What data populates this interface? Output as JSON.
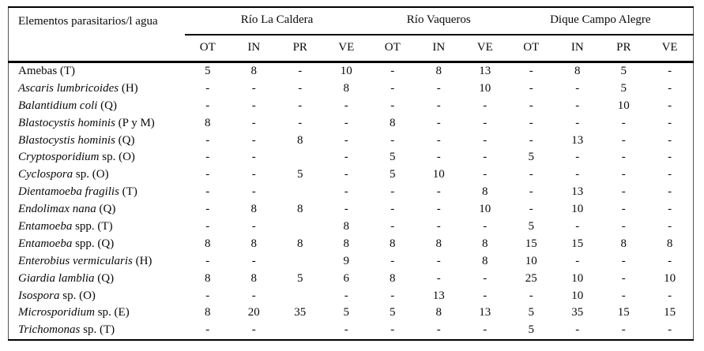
{
  "table": {
    "corner_header": "Elementos parasitarios/l agua",
    "groups": [
      {
        "label": "Río La Caldera",
        "span": "4"
      },
      {
        "label": "Río Vaqueros",
        "span": "3"
      },
      {
        "label": "Dique Campo Alegre",
        "span": "4"
      }
    ],
    "subheaders": [
      "OT",
      "IN",
      "PR",
      "VE",
      "OT",
      "IN",
      "VE",
      "OT",
      "IN",
      "PR",
      "VE"
    ],
    "rows": [
      {
        "italic": "",
        "plain": "Amebas (T)",
        "cells": [
          "5",
          "8",
          "-",
          "10",
          "-",
          "8",
          "13",
          "-",
          "8",
          "5",
          "-"
        ]
      },
      {
        "italic": "Ascaris lumbricoides",
        "plain": " (H)",
        "cells": [
          "-",
          "-",
          "-",
          "8",
          "-",
          "-",
          "10",
          "-",
          "-",
          "5",
          "-"
        ]
      },
      {
        "italic": "Balantidium coli",
        "plain": " (Q)",
        "cells": [
          "-",
          "-",
          "-",
          "-",
          "-",
          "-",
          "-",
          "-",
          "-",
          "10",
          "-"
        ]
      },
      {
        "italic": "Blastocystis hominis",
        "plain": " (P y M)",
        "cells": [
          "8",
          "-",
          "-",
          "-",
          "8",
          "-",
          "-",
          "-",
          "-",
          "-",
          "-"
        ]
      },
      {
        "italic": "Blastocystis hominis",
        "plain": " (Q)",
        "cells": [
          "-",
          "-",
          "8",
          "-",
          "-",
          "-",
          "-",
          "-",
          "13",
          "-",
          "-"
        ]
      },
      {
        "italic": "Cryptosporidium",
        "plain": " sp. (O)",
        "cells": [
          "-",
          "-",
          "",
          "-",
          "5",
          "-",
          "-",
          "5",
          "-",
          "-",
          "-"
        ]
      },
      {
        "italic": "Cyclospora",
        "plain": " sp. (O)",
        "cells": [
          "-",
          "-",
          "5",
          "-",
          "5",
          "10",
          "-",
          "-",
          "-",
          "-",
          "-"
        ]
      },
      {
        "italic": "Dientamoeba fragilis",
        "plain": " (T)",
        "cells": [
          "-",
          "-",
          "",
          "-",
          "-",
          "-",
          "8",
          "-",
          "13",
          "-",
          "-"
        ]
      },
      {
        "italic": "Endolimax nana",
        "plain": " (Q)",
        "cells": [
          "-",
          "8",
          "8",
          "-",
          "-",
          "-",
          "10",
          "-",
          "10",
          "-",
          "-"
        ]
      },
      {
        "italic": "Entamoeba",
        "plain": " spp. (T)",
        "cells": [
          "-",
          "-",
          "",
          "8",
          "-",
          "-",
          "-",
          "5",
          "-",
          "-",
          "-"
        ]
      },
      {
        "italic": "Entamoeba",
        "plain": " spp. (Q)",
        "cells": [
          "8",
          "8",
          "8",
          "8",
          "8",
          "8",
          "8",
          "15",
          "15",
          "8",
          "8"
        ]
      },
      {
        "italic": "Enterobius vermicularis",
        "plain": " (H)",
        "cells": [
          "-",
          "-",
          "",
          "9",
          "-",
          "-",
          "8",
          "10",
          "-",
          "-",
          "-"
        ]
      },
      {
        "italic": "Giardia lamblia",
        "plain": " (Q)",
        "cells": [
          "8",
          "8",
          "5",
          "6",
          "8",
          "-",
          "-",
          "25",
          "10",
          "-",
          "10"
        ]
      },
      {
        "italic": "Isospora",
        "plain": " sp. (O)",
        "cells": [
          "-",
          "-",
          "",
          "-",
          "-",
          "13",
          "-",
          "-",
          "10",
          "-",
          "-"
        ]
      },
      {
        "italic": "Microsporidium",
        "plain": " sp. (E)",
        "cells": [
          "8",
          "20",
          "35",
          "5",
          "5",
          "8",
          "13",
          "5",
          "35",
          "15",
          "15"
        ]
      },
      {
        "italic": "Trichomonas",
        "plain": " sp. (T)",
        "cells": [
          "-",
          "-",
          "",
          "-",
          "-",
          "-",
          "-",
          "5",
          "-",
          "-",
          "-"
        ]
      }
    ]
  }
}
